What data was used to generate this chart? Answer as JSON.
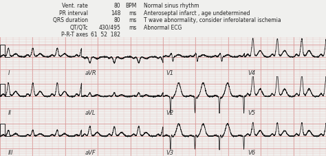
{
  "bg_color": "#f5dede",
  "grid_minor_color": "#e8b8b8",
  "grid_major_color": "#d89090",
  "line_color": "#1a1a1a",
  "header_bg": "#f0f0f0",
  "header_text_left": [
    "Vent. rate",
    "PR interval",
    "QRS duration",
    "QT/QTc",
    "P-R-T axes"
  ],
  "header_values_mid": [
    "80",
    "148",
    "80",
    "430/495",
    "61  52  182"
  ],
  "header_units": [
    "BPM",
    "ms",
    "ms",
    "ms",
    ""
  ],
  "header_text_right": [
    "Normal sinus rhythm",
    "Anteroseptal infarct , age undetermined",
    "T wave abnormality, consider inferolateral ischemia",
    "Abnormal ECG",
    ""
  ],
  "lead_labels_row1": [
    "I",
    "aVR",
    "V1",
    "V4"
  ],
  "lead_labels_row2": [
    "II",
    "aVL",
    "V2",
    "V5"
  ],
  "lead_labels_row3": [
    "III",
    "aVF",
    "V3",
    "V6"
  ],
  "header_fontsize": 5.5,
  "label_fontsize": 6.0,
  "figsize": [
    4.74,
    2.28
  ],
  "dpi": 100
}
